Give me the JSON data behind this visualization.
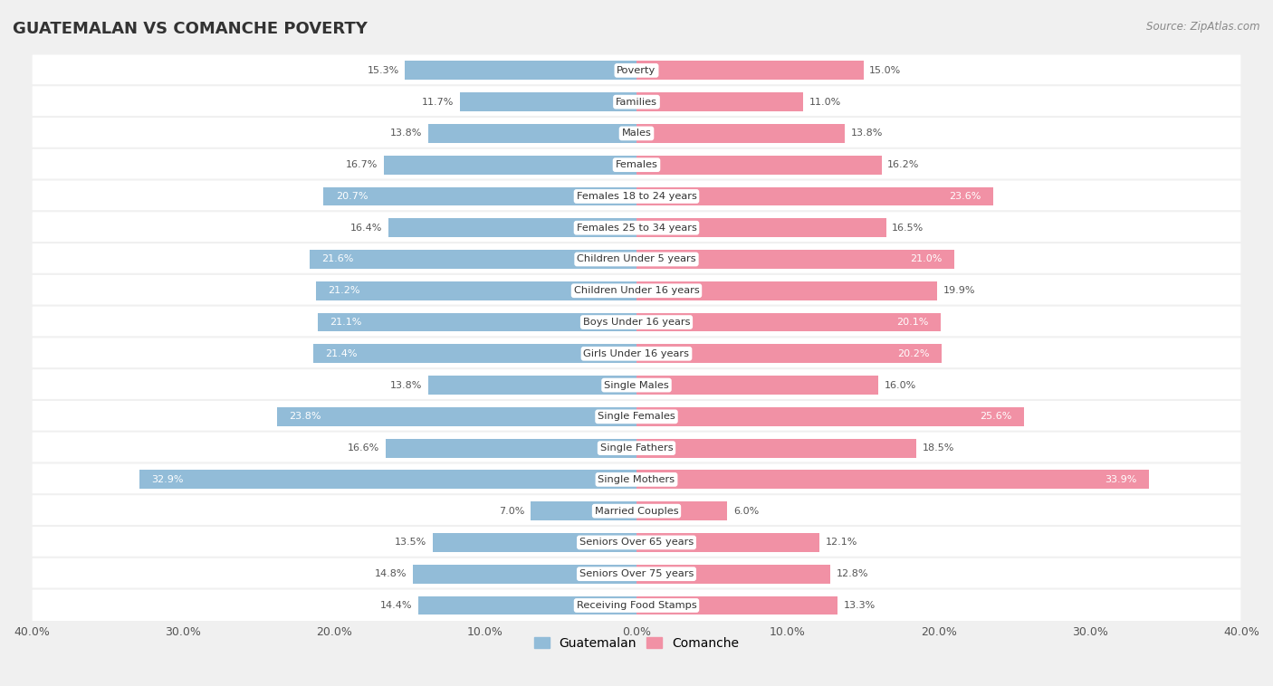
{
  "title": "GUATEMALAN VS COMANCHE POVERTY",
  "source": "Source: ZipAtlas.com",
  "categories": [
    "Poverty",
    "Families",
    "Males",
    "Females",
    "Females 18 to 24 years",
    "Females 25 to 34 years",
    "Children Under 5 years",
    "Children Under 16 years",
    "Boys Under 16 years",
    "Girls Under 16 years",
    "Single Males",
    "Single Females",
    "Single Fathers",
    "Single Mothers",
    "Married Couples",
    "Seniors Over 65 years",
    "Seniors Over 75 years",
    "Receiving Food Stamps"
  ],
  "guatemalan": [
    15.3,
    11.7,
    13.8,
    16.7,
    20.7,
    16.4,
    21.6,
    21.2,
    21.1,
    21.4,
    13.8,
    23.8,
    16.6,
    32.9,
    7.0,
    13.5,
    14.8,
    14.4
  ],
  "comanche": [
    15.0,
    11.0,
    13.8,
    16.2,
    23.6,
    16.5,
    21.0,
    19.9,
    20.1,
    20.2,
    16.0,
    25.6,
    18.5,
    33.9,
    6.0,
    12.1,
    12.8,
    13.3
  ],
  "guatemalan_color": "#92bcd8",
  "comanche_color": "#f191a5",
  "bg_color": "#f0f0f0",
  "row_bg_color": "#ffffff",
  "axis_limit": 40.0,
  "legend_guatemalan": "Guatemalan",
  "legend_comanche": "Comanche",
  "label_color_outside": "#555555",
  "label_color_inside": "#ffffff"
}
